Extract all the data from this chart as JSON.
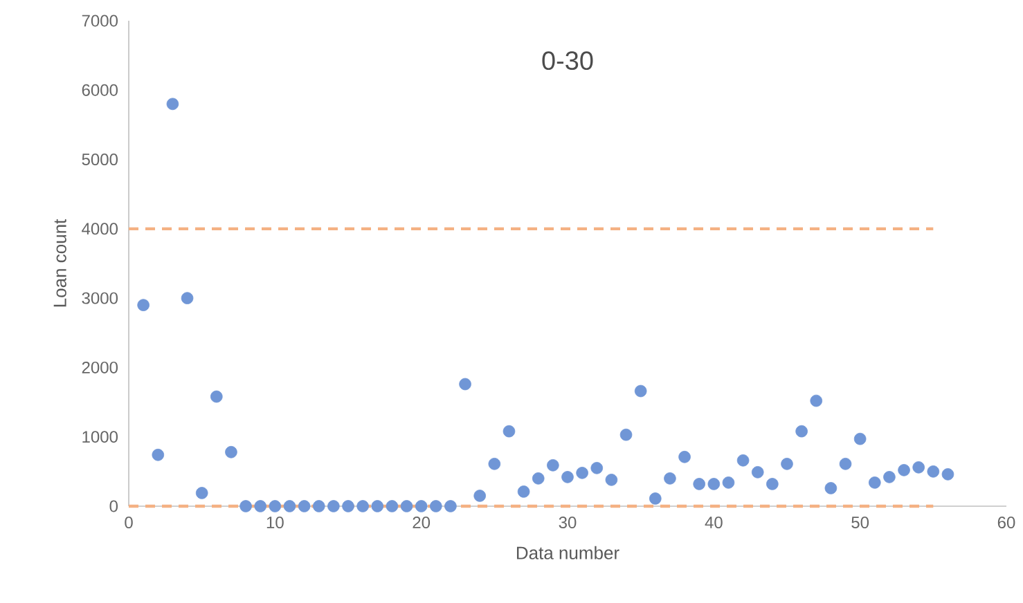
{
  "chart_data": {
    "type": "scatter",
    "title": "0-30",
    "xlabel": "Data number",
    "ylabel": "Loan count",
    "xlim": [
      0,
      60
    ],
    "xticks": [
      0,
      10,
      20,
      30,
      40,
      50,
      60
    ],
    "ylim": [
      0,
      7000
    ],
    "yticks": [
      0,
      1000,
      2000,
      3000,
      4000,
      5000,
      6000,
      7000
    ],
    "grid": false,
    "series": [
      {
        "type": "scatter",
        "marker": "circle",
        "color": "#7096d6",
        "x": [
          1,
          2,
          3,
          4,
          5,
          6,
          7,
          8,
          9,
          10,
          11,
          12,
          13,
          14,
          15,
          16,
          17,
          18,
          19,
          20,
          21,
          22,
          23,
          24,
          25,
          26,
          27,
          28,
          29,
          30,
          31,
          32,
          33,
          34,
          35,
          36,
          37,
          38,
          39,
          40,
          41,
          42,
          43,
          44,
          45,
          46,
          47,
          48,
          49,
          50,
          51,
          52,
          53,
          54,
          55,
          56
        ],
        "values": [
          2900,
          740,
          5800,
          3000,
          190,
          1580,
          780,
          0,
          0,
          0,
          0,
          0,
          0,
          0,
          0,
          0,
          0,
          0,
          0,
          0,
          0,
          0,
          1760,
          150,
          610,
          1080,
          210,
          400,
          590,
          420,
          480,
          550,
          380,
          1030,
          1660,
          110,
          400,
          710,
          320,
          320,
          340,
          660,
          490,
          320,
          610,
          1080,
          1520,
          260,
          610,
          970,
          340,
          420,
          520,
          560,
          500,
          460
        ]
      },
      {
        "type": "line",
        "color": "#f4b183",
        "line_style": "dashed",
        "marker": "none",
        "x": [
          0,
          55
        ],
        "values": [
          4000,
          4000
        ]
      },
      {
        "type": "line",
        "color": "#f4b183",
        "line_style": "dashed",
        "marker": "none",
        "x": [
          0,
          55
        ],
        "values": [
          0,
          0
        ]
      }
    ]
  }
}
